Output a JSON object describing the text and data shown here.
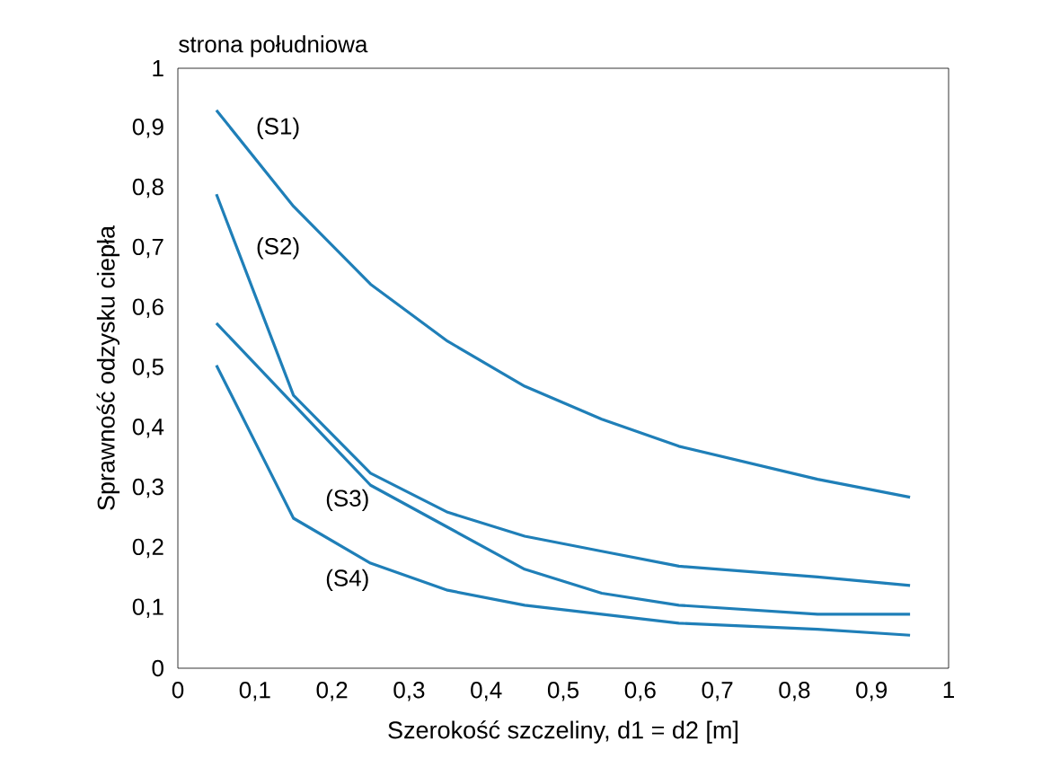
{
  "chart_data": {
    "type": "line",
    "title": "strona południowa",
    "xlabel": "Szerokość szczeliny, d1 = d2 [m]",
    "ylabel": "Sprawność odzysku ciepła",
    "xlim": [
      0,
      1
    ],
    "ylim": [
      0,
      1
    ],
    "xticks": [
      0,
      {
        "value": 0.1,
        "label": "0,1"
      },
      {
        "value": 0.2,
        "label": "0,2"
      },
      {
        "value": 0.3,
        "label": "0,3"
      },
      {
        "value": 0.4,
        "label": "0,4"
      },
      {
        "value": 0.5,
        "label": "0,5"
      },
      {
        "value": 0.6,
        "label": "0,6"
      },
      {
        "value": 0.7,
        "label": "0,7"
      },
      {
        "value": 0.8,
        "label": "0,8"
      },
      {
        "value": 0.9,
        "label": "0,9"
      },
      1
    ],
    "yticks": [
      0,
      {
        "value": 0.1,
        "label": "0,1"
      },
      {
        "value": 0.2,
        "label": "0,2"
      },
      {
        "value": 0.3,
        "label": "0,3"
      },
      {
        "value": 0.4,
        "label": "0,4"
      },
      {
        "value": 0.5,
        "label": "0,5"
      },
      {
        "value": 0.6,
        "label": "0,6"
      },
      {
        "value": 0.7,
        "label": "0,7"
      },
      {
        "value": 0.8,
        "label": "0,8"
      },
      {
        "value": 0.9,
        "label": "0,9"
      },
      1
    ],
    "grid": false,
    "legend": false,
    "marker": "none",
    "line_style": "solid",
    "series": [
      {
        "name": "(S1)",
        "color": "#1f7fb8",
        "x": [
          0.05,
          0.15,
          0.25,
          0.35,
          0.45,
          0.55,
          0.65,
          0.83,
          0.95
        ],
        "values": [
          0.93,
          0.77,
          0.64,
          0.545,
          0.47,
          0.415,
          0.37,
          0.315,
          0.285
        ]
      },
      {
        "name": "(S2)",
        "color": "#1f7fb8",
        "x": [
          0.05,
          0.15,
          0.25,
          0.35,
          0.45,
          0.55,
          0.65,
          0.83,
          0.95
        ],
        "values": [
          0.79,
          0.455,
          0.325,
          0.26,
          0.22,
          0.195,
          0.17,
          0.152,
          0.138
        ]
      },
      {
        "name": "(S3)",
        "color": "#1f7fb8",
        "x": [
          0.05,
          0.15,
          0.25,
          0.35,
          0.45,
          0.55,
          0.65,
          0.83,
          0.95
        ],
        "values": [
          0.575,
          0.44,
          0.305,
          0.235,
          0.165,
          0.125,
          0.105,
          0.09,
          0.09
        ]
      },
      {
        "name": "(S4)",
        "color": "#1f7fb8",
        "x": [
          0.05,
          0.15,
          0.25,
          0.35,
          0.45,
          0.55,
          0.65,
          0.83,
          0.95
        ],
        "values": [
          0.505,
          0.25,
          0.175,
          0.13,
          0.105,
          0.09,
          0.075,
          0.065,
          0.055
        ]
      }
    ]
  }
}
